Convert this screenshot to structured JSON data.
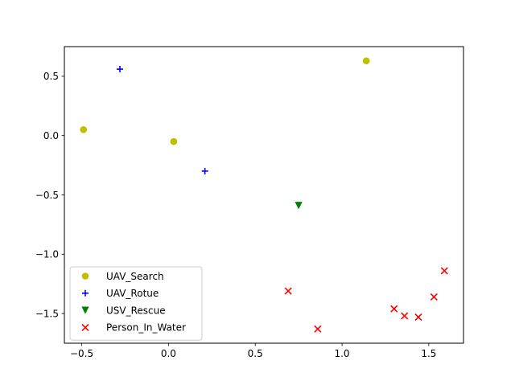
{
  "chart_data": {
    "type": "scatter",
    "title": "",
    "xlabel": "",
    "ylabel": "",
    "xlim": [
      -0.6,
      1.7
    ],
    "ylim": [
      -1.75,
      0.75
    ],
    "xticks": [
      -0.5,
      0.0,
      0.5,
      1.0,
      1.5
    ],
    "xtick_labels": [
      "−0.5",
      "0.0",
      "0.5",
      "1.0",
      "1.5"
    ],
    "yticks": [
      -1.5,
      -1.0,
      -0.5,
      0.0,
      0.5
    ],
    "ytick_labels": [
      "−1.5",
      "−1.0",
      "−0.5",
      "0.0",
      "0.5"
    ],
    "grid": false,
    "legend_position": "lower-left",
    "series": [
      {
        "name": "UAV_Search",
        "marker": "circle",
        "color": "#bfbf00",
        "x": [
          -0.49,
          0.03,
          1.14
        ],
        "y": [
          0.05,
          -0.05,
          0.63
        ]
      },
      {
        "name": "UAV_Rotue",
        "marker": "plus",
        "color": "#0000ff",
        "x": [
          -0.28,
          0.21
        ],
        "y": [
          0.56,
          -0.3
        ]
      },
      {
        "name": "USV_Rescue",
        "marker": "triangle-down",
        "color": "#008000",
        "x": [
          0.75
        ],
        "y": [
          -0.59
        ]
      },
      {
        "name": "Person_In_Water",
        "marker": "x",
        "color": "#ff0000",
        "x": [
          0.69,
          0.86,
          1.3,
          1.36,
          1.44,
          1.53,
          1.59
        ],
        "y": [
          -1.31,
          -1.63,
          -1.46,
          -1.52,
          -1.53,
          -1.36,
          -1.14
        ]
      }
    ]
  }
}
